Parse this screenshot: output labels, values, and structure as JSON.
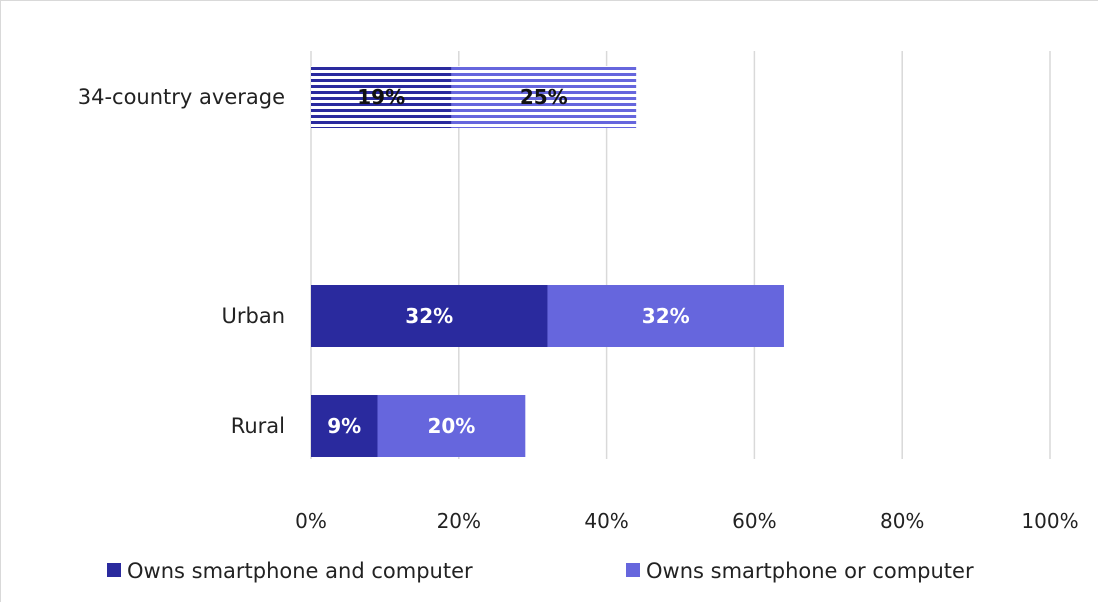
{
  "chart_data": {
    "type": "bar",
    "orientation": "horizontal",
    "stacked": true,
    "categories": [
      "34-country average",
      "Urban",
      "Rural"
    ],
    "series": [
      {
        "name": "Owns smartphone and computer",
        "values": [
          19,
          32,
          9
        ],
        "labels": [
          "19%",
          "32%",
          "9%"
        ],
        "color": "#2a2a9e"
      },
      {
        "name": "Owns smartphone or computer",
        "values": [
          25,
          32,
          20
        ],
        "labels": [
          "25%",
          "32%",
          "20%"
        ],
        "color": "#6666dd"
      }
    ],
    "striped_categories": [
      "34-country average"
    ],
    "xlim": [
      0,
      100
    ],
    "xticks": [
      0,
      20,
      40,
      60,
      80,
      100
    ],
    "xtick_labels": [
      "0%",
      "20%",
      "40%",
      "60%",
      "80%",
      "100%"
    ],
    "grid": "vertical",
    "legend_position": "bottom"
  }
}
